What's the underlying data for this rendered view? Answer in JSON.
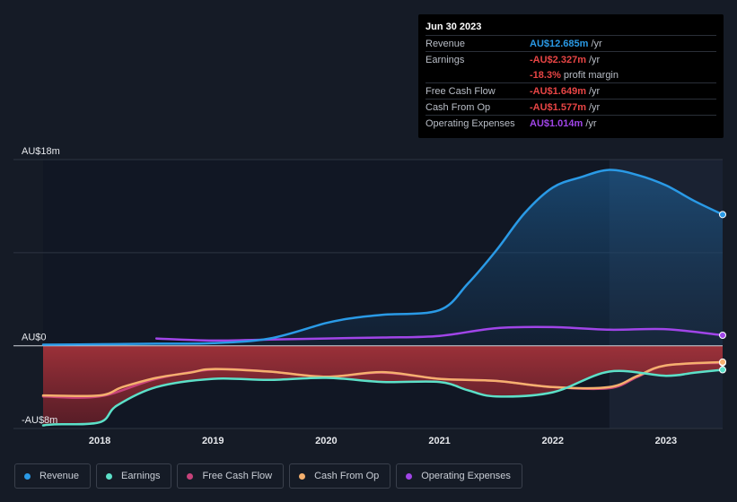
{
  "chart_data": {
    "type": "line",
    "x_unit": "year",
    "xlim": [
      2017.5,
      2023.5
    ],
    "ylim": [
      -8,
      18
    ],
    "y_tick_labels": [
      {
        "value": 18,
        "label": "AU$18m"
      },
      {
        "value": 0,
        "label": "AU$0"
      },
      {
        "value": -8,
        "label": "-AU$8m"
      }
    ],
    "x_tick_labels": [
      "2018",
      "2019",
      "2020",
      "2021",
      "2022",
      "2023"
    ],
    "x_tick_values": [
      2018,
      2019,
      2020,
      2021,
      2022,
      2023
    ],
    "forecast_start": 2022.5,
    "series": [
      {
        "name": "Revenue",
        "key": "revenue",
        "color": "#2a9ae6",
        "fill_area": true,
        "points": [
          [
            2017.5,
            0.1
          ],
          [
            2018.0,
            0.15
          ],
          [
            2018.5,
            0.2
          ],
          [
            2019.0,
            0.25
          ],
          [
            2019.5,
            0.7
          ],
          [
            2020.0,
            2.2
          ],
          [
            2020.25,
            2.7
          ],
          [
            2020.5,
            3.0
          ],
          [
            2021.0,
            3.45
          ],
          [
            2021.25,
            6.0
          ],
          [
            2021.5,
            9.2
          ],
          [
            2021.75,
            12.8
          ],
          [
            2022.0,
            15.3
          ],
          [
            2022.25,
            16.3
          ],
          [
            2022.5,
            17.0
          ],
          [
            2022.75,
            16.5
          ],
          [
            2023.0,
            15.5
          ],
          [
            2023.25,
            14.0
          ],
          [
            2023.5,
            12.685
          ]
        ]
      },
      {
        "name": "Earnings",
        "key": "earnings",
        "color": "#5ce0c8",
        "points": [
          [
            2017.5,
            -7.7
          ],
          [
            2017.6,
            -7.6
          ],
          [
            2018.0,
            -7.4
          ],
          [
            2018.15,
            -5.8
          ],
          [
            2018.5,
            -4.0
          ],
          [
            2019.0,
            -3.2
          ],
          [
            2019.5,
            -3.3
          ],
          [
            2020.0,
            -3.1
          ],
          [
            2020.5,
            -3.5
          ],
          [
            2021.0,
            -3.5
          ],
          [
            2021.25,
            -4.3
          ],
          [
            2021.5,
            -4.9
          ],
          [
            2022.0,
            -4.5
          ],
          [
            2022.5,
            -2.5
          ],
          [
            2023.0,
            -2.9
          ],
          [
            2023.25,
            -2.6
          ],
          [
            2023.5,
            -2.327
          ]
        ]
      },
      {
        "name": "Free Cash Flow",
        "key": "fcf",
        "color": "#c7427a",
        "points": [
          [
            2017.5,
            -4.9
          ],
          [
            2018.0,
            -4.9
          ],
          [
            2018.5,
            -3.2
          ],
          [
            2019.0,
            -2.3
          ],
          [
            2019.5,
            -2.5
          ],
          [
            2020.0,
            -3.0
          ],
          [
            2020.5,
            -2.6
          ],
          [
            2021.0,
            -3.2
          ],
          [
            2021.5,
            -3.4
          ],
          [
            2022.0,
            -4.0
          ],
          [
            2022.5,
            -4.1
          ],
          [
            2022.75,
            -3.0
          ],
          [
            2023.0,
            -1.9
          ],
          [
            2023.5,
            -1.649
          ]
        ]
      },
      {
        "name": "Cash From Op",
        "key": "cfo",
        "color": "#f5b06e",
        "points": [
          [
            2017.5,
            -4.8
          ],
          [
            2018.0,
            -4.8
          ],
          [
            2018.2,
            -4.0
          ],
          [
            2018.5,
            -3.1
          ],
          [
            2018.8,
            -2.6
          ],
          [
            2019.0,
            -2.25
          ],
          [
            2019.5,
            -2.5
          ],
          [
            2020.0,
            -3.0
          ],
          [
            2020.5,
            -2.55
          ],
          [
            2021.0,
            -3.2
          ],
          [
            2021.5,
            -3.4
          ],
          [
            2022.0,
            -4.0
          ],
          [
            2022.5,
            -4.0
          ],
          [
            2022.75,
            -2.9
          ],
          [
            2023.0,
            -1.9
          ],
          [
            2023.5,
            -1.577
          ]
        ]
      },
      {
        "name": "Operating Expenses",
        "key": "opex",
        "color": "#a045e8",
        "points": [
          [
            2018.5,
            0.7
          ],
          [
            2019.0,
            0.5
          ],
          [
            2019.5,
            0.6
          ],
          [
            2020.0,
            0.7
          ],
          [
            2020.5,
            0.8
          ],
          [
            2021.0,
            0.95
          ],
          [
            2021.5,
            1.7
          ],
          [
            2022.0,
            1.8
          ],
          [
            2022.5,
            1.55
          ],
          [
            2023.0,
            1.6
          ],
          [
            2023.5,
            1.014
          ]
        ]
      }
    ]
  },
  "tooltip": {
    "date": "Jun 30 2023",
    "rows": [
      {
        "label": "Revenue",
        "value": "AU$12.685m",
        "unit": "/yr",
        "color": "#2a9ae6"
      },
      {
        "label": "Earnings",
        "value": "-AU$2.327m",
        "unit": "/yr",
        "color": "#e84545"
      },
      {
        "label": "",
        "value": "-18.3%",
        "unit": "profit margin",
        "color": "#e84545"
      },
      {
        "label": "Free Cash Flow",
        "value": "-AU$1.649m",
        "unit": "/yr",
        "color": "#e84545"
      },
      {
        "label": "Cash From Op",
        "value": "-AU$1.577m",
        "unit": "/yr",
        "color": "#e84545"
      },
      {
        "label": "Operating Expenses",
        "value": "AU$1.014m",
        "unit": "/yr",
        "color": "#a045e8"
      }
    ]
  },
  "legend": [
    {
      "label": "Revenue",
      "color": "#2a9ae6"
    },
    {
      "label": "Earnings",
      "color": "#5ce0c8"
    },
    {
      "label": "Free Cash Flow",
      "color": "#c7427a"
    },
    {
      "label": "Cash From Op",
      "color": "#f5b06e"
    },
    {
      "label": "Operating Expenses",
      "color": "#a045e8"
    }
  ]
}
